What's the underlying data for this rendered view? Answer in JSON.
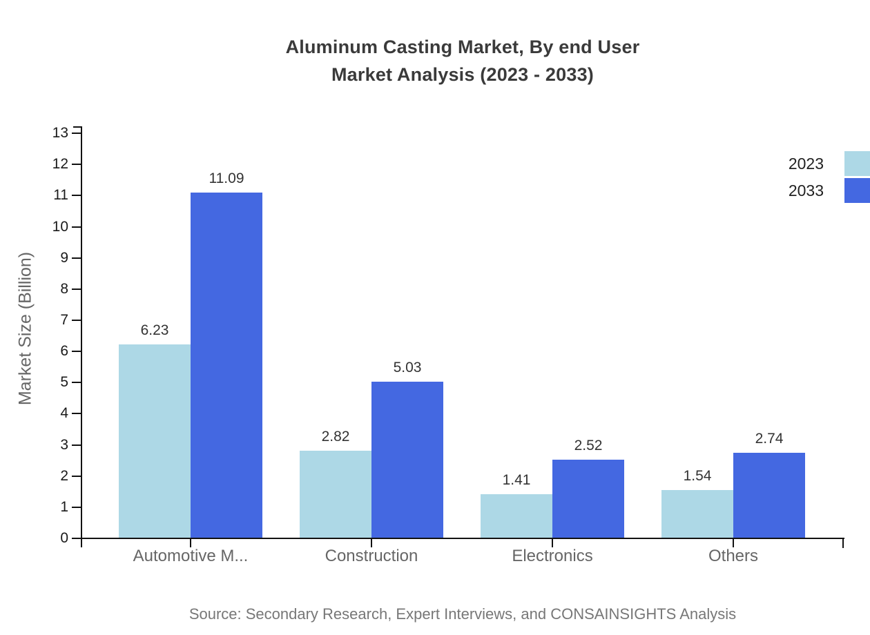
{
  "title": {
    "line1": "Aluminum Casting Market, By end User",
    "line2": "Market Analysis (2023 - 2033)"
  },
  "source": "Source: Secondary Research, Expert Interviews, and CONSAINSIGHTS Analysis",
  "legend": [
    {
      "label": "2023",
      "color": "#ADD8E6"
    },
    {
      "label": "2033",
      "color": "#4468E1"
    }
  ],
  "chart_data": {
    "type": "bar",
    "title": "Aluminum Casting Market, By end User Market Analysis (2023 - 2033)",
    "categories": [
      "Automotive M...",
      "Construction",
      "Electronics",
      "Others"
    ],
    "series": [
      {
        "name": "2023",
        "color": "#ADD8E6",
        "values": [
          6.23,
          2.82,
          1.41,
          1.54
        ]
      },
      {
        "name": "2033",
        "color": "#4468E1",
        "values": [
          11.09,
          5.03,
          2.52,
          2.74
        ]
      }
    ],
    "xlabel": "",
    "ylabel": "Market Size (Billion)",
    "ylim": [
      0,
      13
    ],
    "yticks": [
      0,
      1,
      2,
      3,
      4,
      5,
      6,
      7,
      8,
      9,
      10,
      11,
      12,
      13
    ],
    "grid": false,
    "legend_position": "top-right",
    "value_labels": true,
    "value_label_format": "0.00"
  }
}
